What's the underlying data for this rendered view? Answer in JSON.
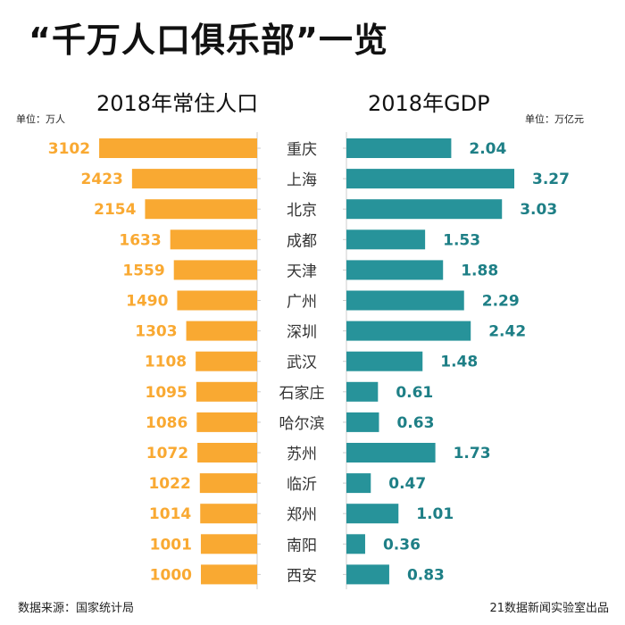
{
  "title": "“千万人口俱乐部”一览",
  "footer": {
    "source": "数据来源：国家统计局",
    "credit": "21数据新闻实验室出品"
  },
  "colors": {
    "population": "#F9A932",
    "gdp": "#27939A",
    "gdp_label": "#1E7F86",
    "city": "#333333",
    "axis": "#cccccc"
  },
  "chart_data": [
    {
      "type": "bar",
      "orientation": "horizontal-left",
      "title": "2018年常住人口",
      "unit": "单位：万人",
      "categories": [
        "重庆",
        "上海",
        "北京",
        "成都",
        "天津",
        "广州",
        "深圳",
        "武汉",
        "石家庄",
        "哈尔滨",
        "苏州",
        "临沂",
        "郑州",
        "南阳",
        "西安"
      ],
      "values": [
        3102,
        2423,
        2154,
        1633,
        1559,
        1490,
        1303,
        1108,
        1095,
        1086,
        1072,
        1022,
        1014,
        1001,
        1000
      ]
    },
    {
      "type": "bar",
      "orientation": "horizontal-right",
      "title": "2018年GDP",
      "unit": "单位：万亿元",
      "categories": [
        "重庆",
        "上海",
        "北京",
        "成都",
        "天津",
        "广州",
        "深圳",
        "武汉",
        "石家庄",
        "哈尔滨",
        "苏州",
        "临沂",
        "郑州",
        "南阳",
        "西安"
      ],
      "values": [
        2.04,
        3.27,
        3.03,
        1.53,
        1.88,
        2.29,
        2.42,
        1.48,
        0.61,
        0.63,
        1.73,
        0.47,
        1.01,
        0.36,
        0.83
      ]
    }
  ]
}
